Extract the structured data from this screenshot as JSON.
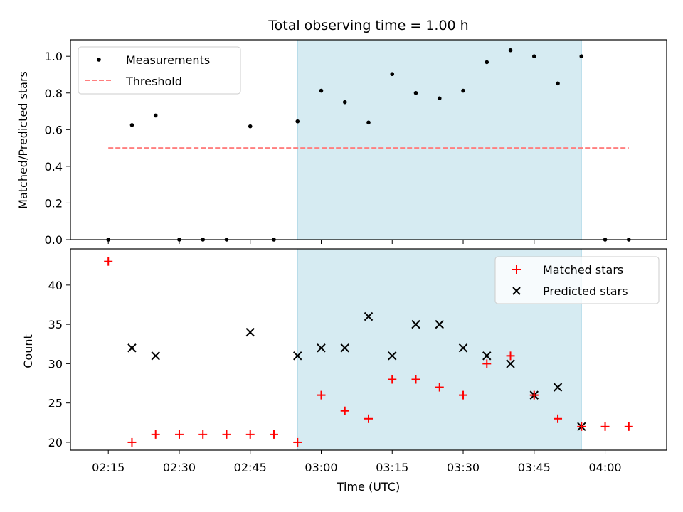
{
  "chart_data": [
    {
      "type": "scatter",
      "title": "Total observing time = 1.00 h",
      "xlabel": "",
      "ylabel": "Matched/Predicted stars",
      "ylim": [
        0,
        1.09
      ],
      "yticks": [
        "0.0",
        "0.2",
        "0.4",
        "0.6",
        "0.8",
        "1.0"
      ],
      "highlight_span": {
        "x_start": "02:55",
        "x_end": "03:55",
        "color": "#add8e6"
      },
      "legend": {
        "position": "top-left",
        "entries": [
          "Measurements",
          "Threshold"
        ]
      },
      "series": [
        {
          "name": "Measurements",
          "marker": "dot",
          "color": "#000000",
          "points": [
            [
              "02:15",
              0.0
            ],
            [
              "02:20",
              0.625
            ],
            [
              "02:25",
              0.677
            ],
            [
              "02:30",
              0.0
            ],
            [
              "02:35",
              0.0
            ],
            [
              "02:40",
              0.0
            ],
            [
              "02:45",
              0.618
            ],
            [
              "02:50",
              0.0
            ],
            [
              "02:55",
              0.645
            ],
            [
              "03:00",
              0.8125
            ],
            [
              "03:05",
              0.75
            ],
            [
              "03:10",
              0.639
            ],
            [
              "03:15",
              0.903
            ],
            [
              "03:20",
              0.8
            ],
            [
              "03:25",
              0.771
            ],
            [
              "03:30",
              0.8125
            ],
            [
              "03:35",
              0.968
            ],
            [
              "03:40",
              1.033
            ],
            [
              "03:45",
              1.0
            ],
            [
              "03:50",
              0.852
            ],
            [
              "03:55",
              1.0
            ],
            [
              "04:00",
              0.0
            ],
            [
              "04:05",
              0.0
            ]
          ]
        },
        {
          "name": "Threshold",
          "marker": "dashed-line",
          "color": "#ff7f7f",
          "points": [
            [
              "02:15",
              0.5
            ],
            [
              "04:05",
              0.5
            ]
          ]
        }
      ]
    },
    {
      "type": "scatter",
      "title": "",
      "xlabel": "Time (UTC)",
      "ylabel": "Count",
      "ylim": [
        19,
        44.6
      ],
      "yticks": [
        "20",
        "25",
        "30",
        "35",
        "40"
      ],
      "xticks": [
        "02:15",
        "02:30",
        "02:45",
        "03:00",
        "03:15",
        "03:30",
        "03:45",
        "04:00"
      ],
      "highlight_span": {
        "x_start": "02:55",
        "x_end": "03:55",
        "color": "#add8e6"
      },
      "legend": {
        "position": "top-right",
        "entries": [
          "Matched stars",
          "Predicted stars"
        ]
      },
      "series": [
        {
          "name": "Matched stars",
          "marker": "plus",
          "color": "#ff0000",
          "points": [
            [
              "02:15",
              43
            ],
            [
              "02:20",
              20
            ],
            [
              "02:25",
              21
            ],
            [
              "02:30",
              21
            ],
            [
              "02:35",
              21
            ],
            [
              "02:40",
              21
            ],
            [
              "02:45",
              21
            ],
            [
              "02:50",
              21
            ],
            [
              "02:55",
              20
            ],
            [
              "03:00",
              26
            ],
            [
              "03:05",
              24
            ],
            [
              "03:10",
              23
            ],
            [
              "03:15",
              28
            ],
            [
              "03:20",
              28
            ],
            [
              "03:25",
              27
            ],
            [
              "03:30",
              26
            ],
            [
              "03:35",
              30
            ],
            [
              "03:40",
              31
            ],
            [
              "03:45",
              26
            ],
            [
              "03:50",
              23
            ],
            [
              "03:55",
              22
            ],
            [
              "04:00",
              22
            ],
            [
              "04:05",
              22
            ]
          ]
        },
        {
          "name": "Predicted stars",
          "marker": "x",
          "color": "#000000",
          "points": [
            [
              "02:20",
              32
            ],
            [
              "02:25",
              31
            ],
            [
              "02:45",
              34
            ],
            [
              "02:55",
              31
            ],
            [
              "03:00",
              32
            ],
            [
              "03:05",
              32
            ],
            [
              "03:10",
              36
            ],
            [
              "03:15",
              31
            ],
            [
              "03:20",
              35
            ],
            [
              "03:25",
              35
            ],
            [
              "03:30",
              32
            ],
            [
              "03:35",
              31
            ],
            [
              "03:40",
              30
            ],
            [
              "03:45",
              26
            ],
            [
              "03:50",
              27
            ],
            [
              "03:55",
              22
            ]
          ]
        }
      ]
    }
  ]
}
